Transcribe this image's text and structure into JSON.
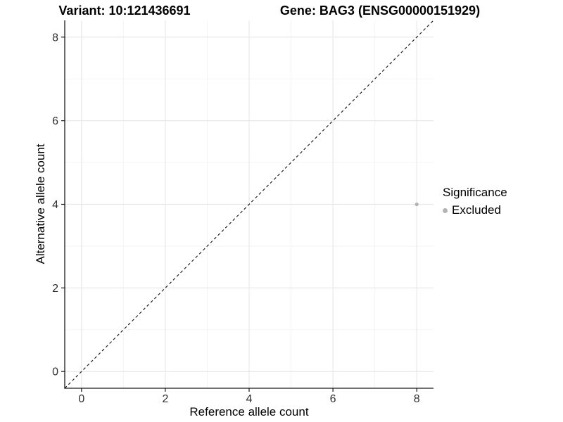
{
  "titles": {
    "variant": "Variant: 10:121436691",
    "gene": "Gene: BAG3 (ENSG00000151929)"
  },
  "legend": {
    "title": "Significance",
    "entries": [
      {
        "label": "Excluded",
        "color": "#b3b3b3"
      }
    ],
    "position": "right"
  },
  "colors": {
    "background": "#ffffff",
    "axis_line": "#1a1a1a",
    "tick_label": "#303030",
    "grid_major": "#e8e8e8",
    "grid_minor": "#f3f3f3",
    "reference_line": "#111111",
    "point": "#b3b3b3"
  },
  "chart_data": {
    "type": "scatter",
    "title": "Variant: 10:121436691    Gene: BAG3 (ENSG00000151929)",
    "xlabel": "Reference allele count",
    "ylabel": "Alternative allele count",
    "xlim": [
      -0.4,
      8.4
    ],
    "ylim": [
      -0.4,
      8.4
    ],
    "x_ticks": [
      0,
      2,
      4,
      6,
      8
    ],
    "y_ticks": [
      0,
      2,
      4,
      6,
      8
    ],
    "x_minor_ticks": [
      1,
      3,
      5,
      7
    ],
    "y_minor_ticks": [
      1,
      3,
      5,
      7
    ],
    "grid": true,
    "legend_position": "right",
    "series": [
      {
        "name": "Excluded",
        "color": "#b3b3b3",
        "points": [
          {
            "x": 8,
            "y": 4
          }
        ]
      }
    ],
    "reference_line": {
      "type": "abline",
      "slope": 1,
      "intercept": 0,
      "style": "dashed",
      "color": "#111111"
    }
  }
}
